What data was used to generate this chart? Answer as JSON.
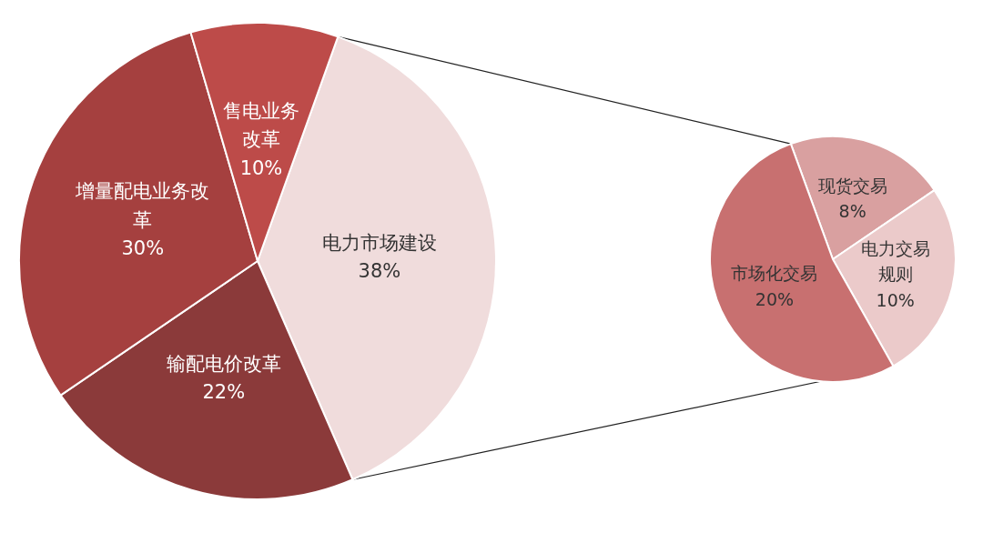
{
  "chart_data": [
    {
      "type": "pie",
      "categories": [
        "电力市场建设",
        "输配电价改革",
        "增量配电业务改革",
        "售电业务改革"
      ],
      "values": [
        38,
        22,
        30,
        10
      ],
      "value_labels": [
        "38%",
        "22%",
        "30%",
        "10%"
      ],
      "colors": [
        "#f0dcdc",
        "#8b3a3a",
        "#a5403f",
        "#bd4b49"
      ]
    },
    {
      "type": "pie",
      "categories": [
        "现货交易",
        "电力交易规则",
        "市场化交易"
      ],
      "values": [
        8,
        10,
        20
      ],
      "value_labels": [
        "8%",
        "10%",
        "20%"
      ],
      "colors": [
        "#d9a0a0",
        "#ebcaca",
        "#c87070"
      ]
    }
  ]
}
